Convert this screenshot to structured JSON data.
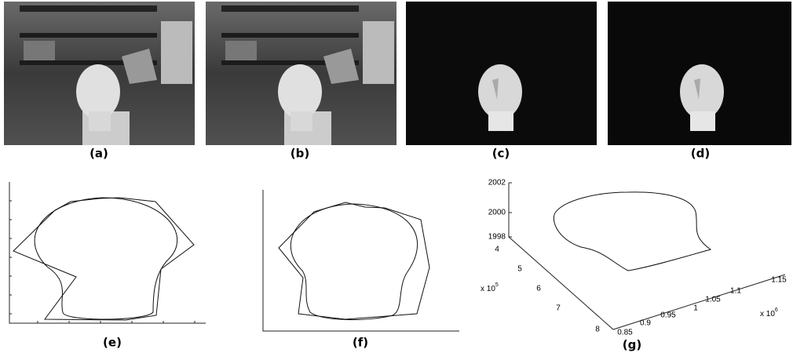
{
  "panels": [
    {
      "caption": "(a)"
    },
    {
      "caption": "(b)"
    },
    {
      "caption": "(c)"
    },
    {
      "caption": "(d)"
    },
    {
      "caption": "(e)"
    },
    {
      "caption": "(f)"
    },
    {
      "caption": "(g)"
    }
  ],
  "plot_3d": {
    "z_ticks": [
      "2002",
      "2000",
      "1998"
    ],
    "y_ticks": [
      "4",
      "5",
      "6",
      "7",
      "8"
    ],
    "y_multiplier": {
      "prefix": "x 10",
      "exponent": "5"
    },
    "x_ticks": [
      "0.85",
      "0.9",
      "0.95",
      "1",
      "1.05",
      "1.1",
      "1.15"
    ],
    "x_multiplier": {
      "prefix": "x 10",
      "exponent": "6"
    }
  }
}
